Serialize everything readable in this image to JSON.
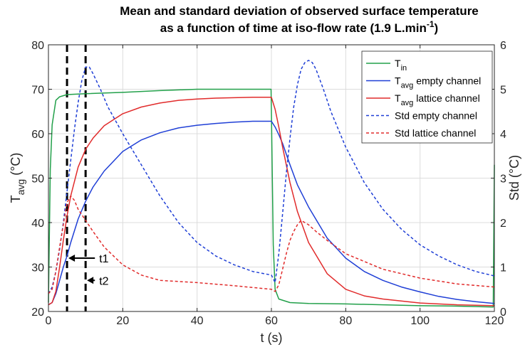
{
  "chart_data": {
    "type": "line",
    "title_line1": "Mean and standard deviation of observed surface temperature",
    "title_line2_main": "as a function of time at iso-flow rate (1.9 L.min",
    "title_line2_sup": "-1",
    "title_line2_end": ")",
    "xlabel": "t (s)",
    "ylabel_left_main": "T",
    "ylabel_left_sub": "avg",
    "ylabel_left_end": " (°C)",
    "ylabel_right": "Std (°C)",
    "xlim": [
      0,
      120
    ],
    "ylim_left": [
      20,
      80
    ],
    "ylim_right": [
      0,
      6
    ],
    "x_ticks": [
      0,
      20,
      40,
      60,
      80,
      100,
      120
    ],
    "y_left_ticks": [
      20,
      30,
      40,
      50,
      60,
      70,
      80
    ],
    "y_right_ticks": [
      0,
      1,
      2,
      3,
      4,
      5,
      6
    ],
    "x_tick_labels": [
      "0",
      "20",
      "40",
      "60",
      "80",
      "100",
      "120"
    ],
    "y_left_tick_labels": [
      "20",
      "30",
      "40",
      "50",
      "60",
      "70",
      "80"
    ],
    "y_right_tick_labels": [
      "0",
      "1",
      "2",
      "3",
      "4",
      "5",
      "6"
    ],
    "grid": true,
    "legend_position": "top-right",
    "series": [
      {
        "id": "t_in",
        "axis": "left",
        "color": "#22a04a",
        "dash": "solid",
        "legend_main": "T",
        "legend_sub": "in",
        "legend_rest": "",
        "x": [
          0,
          0.5,
          1,
          2,
          3,
          5,
          10,
          20,
          30,
          40,
          50,
          59.9,
          60,
          60.5,
          61,
          62,
          65,
          70,
          80,
          90,
          100,
          110,
          119.7,
          120
        ],
        "y": [
          22,
          52,
          62,
          67.5,
          68.3,
          68.8,
          69,
          69.3,
          69.7,
          70,
          70,
          70,
          65,
          35,
          25,
          22.8,
          22,
          21.8,
          21.7,
          21.5,
          21.3,
          21.2,
          21,
          53
        ]
      },
      {
        "id": "t_avg_empty",
        "axis": "left",
        "color": "#1f3fd6",
        "dash": "solid",
        "legend_main": "T",
        "legend_sub": "avg",
        "legend_rest": " empty channel",
        "x": [
          0,
          1,
          2,
          3,
          4,
          5,
          6,
          8,
          10,
          12,
          15,
          20,
          25,
          30,
          35,
          40,
          45,
          50,
          55,
          60,
          61,
          62,
          63,
          65,
          67,
          70,
          75,
          80,
          85,
          90,
          95,
          100,
          105,
          110,
          115,
          120
        ],
        "y": [
          21.5,
          22,
          24,
          27,
          30,
          32.5,
          35.5,
          40.8,
          44.8,
          48,
          51.6,
          56,
          58.6,
          60.2,
          61.3,
          61.9,
          62.3,
          62.6,
          62.8,
          62.8,
          61.5,
          59.8,
          57.8,
          53,
          48.5,
          43.5,
          36.5,
          32,
          29,
          27,
          25.5,
          24.4,
          23.4,
          22.7,
          22.2,
          21.8
        ]
      },
      {
        "id": "t_avg_lattice",
        "axis": "left",
        "color": "#e12b2b",
        "dash": "solid",
        "legend_main": "T",
        "legend_sub": "avg",
        "legend_rest": " lattice channel",
        "x": [
          0,
          1,
          2,
          3,
          4,
          5,
          6,
          8,
          10,
          12,
          15,
          20,
          25,
          30,
          35,
          40,
          45,
          50,
          55,
          60,
          61,
          62,
          63,
          65,
          67,
          70,
          75,
          80,
          85,
          90,
          100,
          110,
          120
        ],
        "y": [
          21.5,
          22,
          24.5,
          30,
          36,
          41.5,
          46,
          52.5,
          56.5,
          59,
          61.8,
          64.5,
          66,
          66.9,
          67.5,
          67.8,
          68,
          68.1,
          68.2,
          68.2,
          65.5,
          61.5,
          57,
          49,
          42.5,
          35.5,
          28.5,
          25,
          23.5,
          22.8,
          21.9,
          21.5,
          21.3
        ]
      },
      {
        "id": "std_empty",
        "axis": "right",
        "color": "#1f3fd6",
        "dash": "dashed",
        "legend_main": "Std empty channel",
        "legend_sub": "",
        "legend_rest": "",
        "x": [
          0,
          1,
          2,
          3,
          4,
          5,
          6,
          7,
          8,
          9,
          10,
          11,
          12,
          14,
          16,
          20,
          25,
          30,
          35,
          40,
          45,
          50,
          55,
          60,
          61,
          62,
          63,
          64,
          65,
          66,
          67,
          68,
          69,
          70,
          71,
          72,
          74,
          76,
          80,
          85,
          90,
          95,
          100,
          105,
          110,
          115,
          120
        ],
        "y": [
          0.4,
          0.55,
          0.9,
          1.4,
          2.0,
          2.7,
          3.4,
          4.1,
          4.7,
          5.2,
          5.5,
          5.5,
          5.35,
          5.0,
          4.6,
          4.0,
          3.3,
          2.6,
          2.0,
          1.55,
          1.25,
          1.05,
          0.9,
          0.82,
          0.65,
          1.3,
          2.2,
          3.1,
          3.9,
          4.6,
          5.1,
          5.45,
          5.6,
          5.65,
          5.6,
          5.45,
          5.0,
          4.5,
          3.7,
          2.9,
          2.3,
          1.85,
          1.5,
          1.25,
          1.05,
          0.9,
          0.8
        ]
      },
      {
        "id": "std_lattice",
        "axis": "right",
        "color": "#e12b2b",
        "dash": "dashed",
        "legend_main": "Std lattice channel",
        "legend_sub": "",
        "legend_rest": "",
        "x": [
          0,
          1,
          2,
          3,
          4,
          5,
          6,
          7,
          8,
          10,
          12,
          15,
          20,
          25,
          30,
          40,
          50,
          60,
          61,
          62,
          63,
          64,
          65,
          66,
          67,
          68,
          70,
          72,
          75,
          80,
          90,
          100,
          110,
          120
        ],
        "y": [
          0.4,
          0.5,
          0.9,
          1.45,
          1.95,
          2.45,
          2.6,
          2.5,
          2.3,
          2.05,
          1.8,
          1.45,
          1.05,
          0.82,
          0.7,
          0.65,
          0.58,
          0.5,
          0.45,
          0.6,
          0.95,
          1.3,
          1.6,
          1.8,
          1.95,
          2.05,
          1.95,
          1.8,
          1.6,
          1.3,
          0.95,
          0.75,
          0.62,
          0.55
        ]
      }
    ],
    "vlines": [
      {
        "x": 5,
        "style": "dashed",
        "color": "#000000"
      },
      {
        "x": 10,
        "style": "dashed",
        "color": "#000000"
      }
    ],
    "annotations": [
      {
        "label": "t1",
        "arrow_at_x": 5,
        "y": 32,
        "arrow_from_x": 12.5
      },
      {
        "label": "t2",
        "arrow_at_x": 10,
        "y": 27,
        "arrow_from_x": 12.5
      }
    ]
  }
}
